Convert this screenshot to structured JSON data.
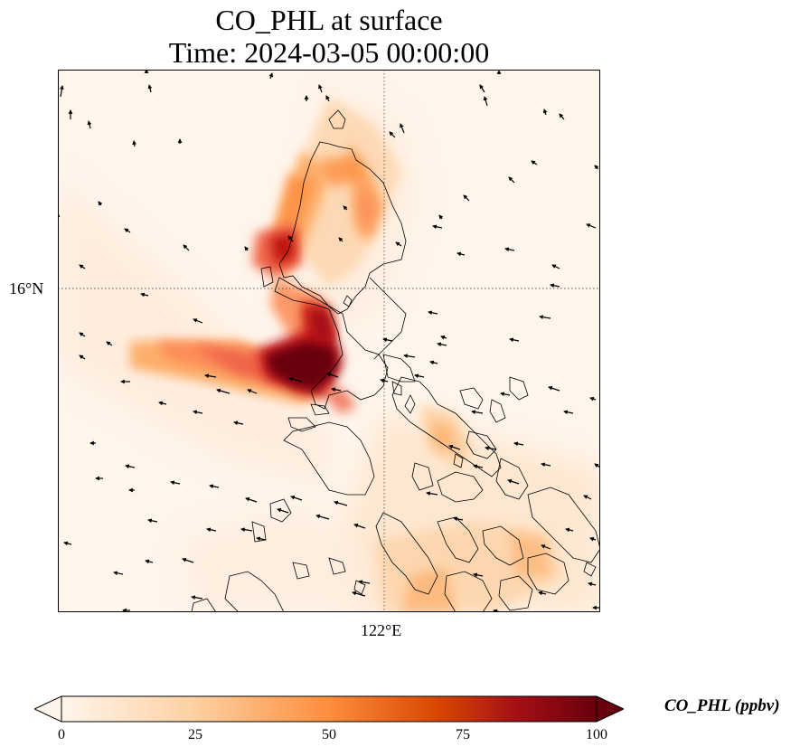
{
  "title": {
    "line1": "CO_PHL at surface",
    "line2": "Time: 2024-03-05 00:00:00"
  },
  "map": {
    "variable": "CO_PHL",
    "level": "surface",
    "gridlines": {
      "latitude_label": "16°N",
      "longitude_label": "122°E"
    },
    "overlays": [
      "coastline",
      "wind-vectors",
      "gridlines-dotted"
    ]
  },
  "colorbar": {
    "label": "CO_PHL (ppbv)",
    "ticks": [
      "0",
      "25",
      "50",
      "75",
      "100"
    ],
    "min": 0,
    "max": 100,
    "extend": "both",
    "colors": {
      "low": "#fff5eb",
      "mid_low": "#fdd0a2",
      "mid": "#fd8d3c",
      "mid_high": "#d94801",
      "high_red": "#a50f15",
      "high": "#67000d"
    }
  }
}
